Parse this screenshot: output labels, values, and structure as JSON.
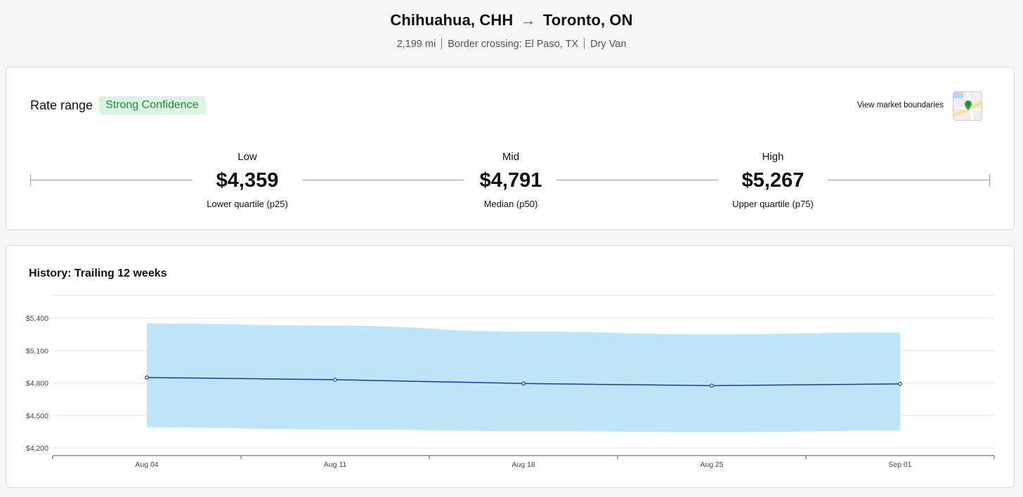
{
  "header": {
    "origin": "Chihuahua, CHH",
    "arrow": "→",
    "destination": "Toronto, ON",
    "distance": "2,199 mi",
    "border_crossing": "Border crossing: El Paso, TX",
    "equipment": "Dry Van"
  },
  "rate_range": {
    "title": "Rate range",
    "confidence": "Strong Confidence",
    "market_link": "View market boundaries",
    "map_icon": "map-pin-icon",
    "low": {
      "label": "Low",
      "value": "$4,359",
      "sub": "Lower quartile (p25)"
    },
    "mid": {
      "label": "Mid",
      "value": "$4,791",
      "sub": "Median (p50)"
    },
    "high": {
      "label": "High",
      "value": "$5,267",
      "sub": "Upper quartile (p75)"
    }
  },
  "history": {
    "title": "History: Trailing 12 weeks"
  },
  "colors": {
    "band": "#bfe6f8",
    "line": "#1a3aa6",
    "confidence_bg": "#dcf5e3",
    "confidence_text": "#1f8a3c"
  },
  "chart_data": {
    "type": "area",
    "categories": [
      "Aug 04",
      "Aug 11",
      "Aug 18",
      "Aug 25",
      "Sep 01"
    ],
    "series": [
      {
        "values": [
          4850,
          4830,
          4795,
          4775,
          4791
        ]
      },
      {
        "values": [
          5350,
          5330,
          5275,
          5250,
          5267
        ]
      },
      {
        "values": [
          4390,
          4370,
          4355,
          4345,
          4359
        ]
      }
    ],
    "y_ticks": [
      "$5,400",
      "$5,100",
      "$4,800",
      "$4,500",
      "$4,200"
    ],
    "y_tick_values": [
      5400,
      5100,
      4800,
      4500,
      4200
    ],
    "ylim": [
      4200,
      5400
    ],
    "grid": true
  }
}
